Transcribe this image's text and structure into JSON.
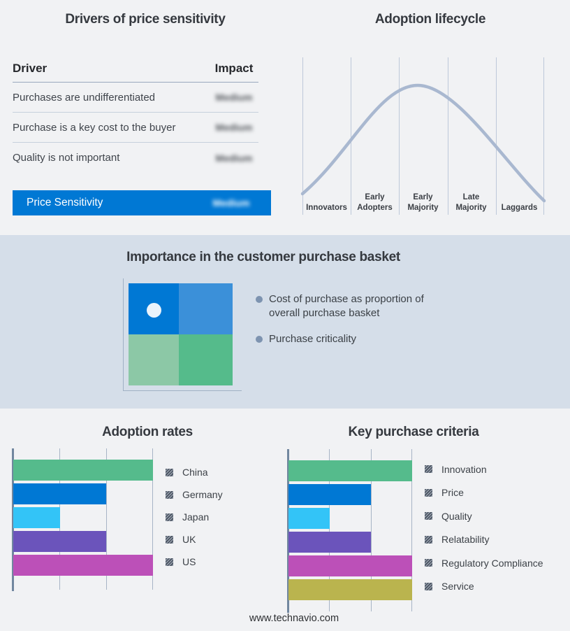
{
  "page": {
    "background": "#f1f2f4",
    "strip_background": "#d5dee9",
    "footer_url": "www.technavio.com"
  },
  "drivers_panel": {
    "title": "Drivers of price sensitivity",
    "columns": {
      "driver": "Driver",
      "impact": "Impact"
    },
    "rows": [
      {
        "driver": "Purchases are undifferentiated",
        "impact": "Medium"
      },
      {
        "driver": "Purchase is a key cost to the buyer",
        "impact": "Medium"
      },
      {
        "driver": "Quality is not important",
        "impact": "Medium"
      }
    ],
    "summary": {
      "label": "Price Sensitivity",
      "impact": "Medium",
      "bar_color": "#0078d4"
    },
    "impact_values_redacted": true
  },
  "basket_panel": {
    "title": "Importance in the customer purchase basket",
    "bullets": [
      "Cost of purchase as proportion of overall purchase basket",
      "Purchase criticality"
    ],
    "quadrant": {
      "top_left": "#0078d4",
      "top_right": "#3b90d9",
      "bottom_left": "#8cc8a6",
      "bottom_right": "#55bb8b",
      "marker_color": "#eaf3fb",
      "marker_quadrant": "top_left"
    }
  },
  "chart_data": [
    {
      "id": "adoption-lifecycle",
      "type": "line",
      "title": "Adoption lifecycle",
      "categories": [
        "Innovators",
        "Early Adopters",
        "Early Majority",
        "Late Majority",
        "Laggards"
      ],
      "shape": "bell curve rising from Innovators, peaking over Early Majority, falling to Laggards",
      "peak_category": "Early Majority",
      "line_color": "#a9b8d0",
      "gridline_color": "#bdc8d9",
      "grid": "vertical category separators",
      "legend_position": "none"
    },
    {
      "id": "adoption-rates",
      "type": "bar",
      "orientation": "horizontal",
      "title": "Adoption rates",
      "categories": [
        "China",
        "Germany",
        "Japan",
        "UK",
        "US"
      ],
      "values": [
        3,
        2,
        1,
        2,
        3
      ],
      "xlim": [
        0,
        3
      ],
      "value_scale": "relative units marked by gridlines (1=low, 2=medium, 3=high)",
      "bar_colors": [
        "#55bb8c",
        "#0078d4",
        "#33c4f7",
        "#6b54bb",
        "#bc50b8"
      ],
      "xlabel": "",
      "ylabel": "",
      "grid": true,
      "legend_position": "right",
      "legend_swatch_style": "gray diagonal hatch"
    },
    {
      "id": "key-purchase-criteria",
      "type": "bar",
      "orientation": "horizontal",
      "title": "Key purchase criteria",
      "categories": [
        "Innovation",
        "Price",
        "Quality",
        "Relatability",
        "Regulatory Compliance",
        "Service"
      ],
      "values": [
        3,
        2,
        1,
        2,
        3,
        3
      ],
      "xlim": [
        0,
        3
      ],
      "value_scale": "relative units marked by gridlines (1=low, 2=medium, 3=high)",
      "bar_colors": [
        "#55bb8c",
        "#0078d4",
        "#33c4f7",
        "#6b54bb",
        "#bc50b8",
        "#bab44e"
      ],
      "xlabel": "",
      "ylabel": "",
      "grid": true,
      "legend_position": "right",
      "legend_swatch_style": "gray diagonal hatch"
    }
  ]
}
